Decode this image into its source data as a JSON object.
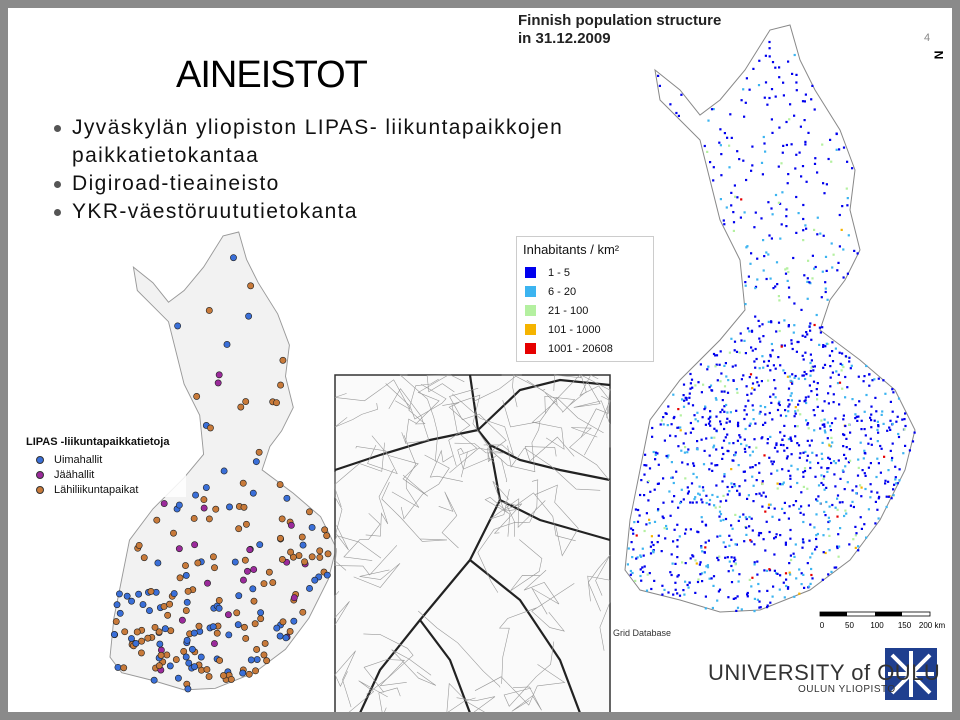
{
  "slide": {
    "title": "AINEISTOT",
    "page_number": "4",
    "bullets": [
      "Jyväskylän yliopiston LIPAS- liikuntapaikkojen paikkatietokantaa",
      "Digiroad-tieaineisto",
      "YKR-väestöruututietokanta"
    ]
  },
  "population_map": {
    "title_lines": [
      "Finnish population structure",
      "in 31.12.2009"
    ],
    "legend": {
      "title": "Inhabitants / km²",
      "items": [
        {
          "label": "1 - 5",
          "color": "#0000ee"
        },
        {
          "label": "6 - 20",
          "color": "#3cb4f0"
        },
        {
          "label": "21 - 100",
          "color": "#b4f0a0"
        },
        {
          "label": "101 - 1000",
          "color": "#f5b400"
        },
        {
          "label": "1001 - 20608",
          "color": "#e60000"
        }
      ]
    },
    "source": "Grid Database",
    "scale_labels": [
      "0",
      "50",
      "100",
      "150",
      "200 km"
    ],
    "north": "N"
  },
  "lipas_map": {
    "legend": {
      "title": "LIPAS -liikuntapaikkatietoja",
      "items": [
        {
          "label": "Uimahallit",
          "color": "#3a6fd8"
        },
        {
          "label": "Jäähallit",
          "color": "#9b2a9b"
        },
        {
          "label": "Lähiliikuntapaikat",
          "color": "#c87a3a"
        }
      ]
    }
  },
  "logo": {
    "name": "UNIVERSITY of OULU",
    "subname": "OULUN YLIOPISTO"
  }
}
